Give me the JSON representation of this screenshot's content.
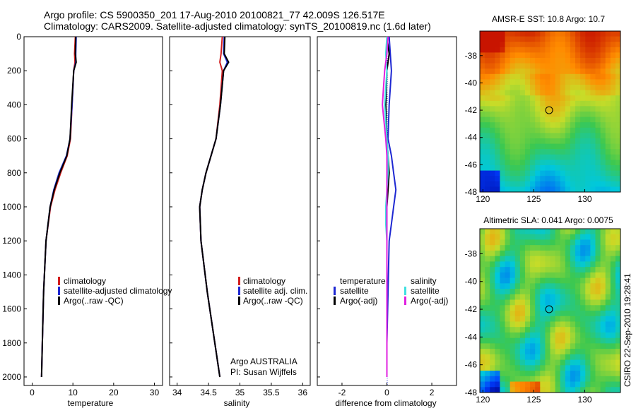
{
  "header": {
    "line1": "Argo profile: CS 5900350_201 17-Aug-2010 20100821_77 42.009S 126.517E",
    "line2": "Climatology: CARS2009. Satellite-adjusted climatology: synTS_20100819.nc (1.6d later)"
  },
  "colors": {
    "climatology": "#d21e1e",
    "satellite": "#1e28d2",
    "argo": "#000000",
    "cyan": "#40e0e0",
    "magenta": "#e020e0"
  },
  "depth_ticks": [
    "0",
    "200",
    "400",
    "600",
    "800",
    "1000",
    "1200",
    "1400",
    "1600",
    "1800",
    "2000"
  ],
  "credits": {
    "org": "Argo AUSTRALIA",
    "pi": "PI: Susan Wijffels",
    "stamp": "CSIRO 22-Sep-2010 19:28:41"
  },
  "chart_data": [
    {
      "type": "line",
      "xlabel": "temperature",
      "xticks": [
        "0",
        "10",
        "20",
        "30"
      ],
      "xlim": [
        -2,
        32
      ],
      "ylim": [
        2050,
        0
      ],
      "legend": [
        "climatology",
        "satellite-adjusted climatology",
        "Argo(..raw -QC)"
      ],
      "series": [
        {
          "name": "climatology",
          "color": "climatology",
          "x": [
            10.6,
            10.4,
            10.5,
            10.2,
            9.8,
            9.4,
            8.6,
            7.0,
            5.6,
            4.5,
            3.4,
            2.8,
            2.5,
            2.3
          ],
          "y": [
            0,
            100,
            150,
            200,
            400,
            600,
            700,
            800,
            900,
            1000,
            1200,
            1500,
            1800,
            2000
          ]
        },
        {
          "name": "satellite-adjusted climatology",
          "color": "satellite",
          "x": [
            10.8,
            10.7,
            10.7,
            10.2,
            9.8,
            9.3,
            8.4,
            6.6,
            5.3,
            4.4,
            3.4,
            2.8,
            2.5,
            2.3
          ],
          "y": [
            0,
            100,
            150,
            200,
            400,
            600,
            700,
            800,
            900,
            1000,
            1200,
            1500,
            1800,
            2000
          ]
        },
        {
          "name": "Argo(..raw -QC)",
          "color": "argo",
          "x": [
            10.7,
            10.6,
            10.8,
            10.2,
            9.7,
            9.3,
            8.5,
            6.8,
            5.4,
            4.4,
            3.4,
            2.8,
            2.5,
            2.3
          ],
          "y": [
            0,
            100,
            150,
            200,
            400,
            600,
            700,
            800,
            900,
            1000,
            1200,
            1500,
            1800,
            2000
          ]
        }
      ]
    },
    {
      "type": "line",
      "xlabel": "salinity",
      "xticks": [
        "34",
        "34.5",
        "35",
        "35.5",
        "36"
      ],
      "xlim": [
        33.88,
        36.12
      ],
      "ylim": [
        2050,
        0
      ],
      "legend": [
        "climatology",
        "satellite adj. clim.",
        "Argo(..raw -QC)"
      ],
      "series": [
        {
          "name": "climatology",
          "color": "climatology",
          "x": [
            34.72,
            34.7,
            34.68,
            34.72,
            34.68,
            34.62,
            34.54,
            34.46,
            34.4,
            34.36,
            34.38,
            34.48,
            34.6,
            34.68
          ],
          "y": [
            0,
            100,
            150,
            200,
            400,
            600,
            700,
            800,
            900,
            1000,
            1200,
            1500,
            1800,
            2000
          ]
        },
        {
          "name": "satellite adj. clim.",
          "color": "satellite",
          "x": [
            34.75,
            34.74,
            34.8,
            34.74,
            34.69,
            34.62,
            34.54,
            34.46,
            34.4,
            34.36,
            34.38,
            34.48,
            34.6,
            34.68
          ],
          "y": [
            0,
            100,
            150,
            200,
            400,
            600,
            700,
            800,
            900,
            1000,
            1200,
            1500,
            1800,
            2000
          ]
        },
        {
          "name": "Argo(..raw -QC)",
          "color": "argo",
          "x": [
            34.76,
            34.75,
            34.82,
            34.74,
            34.69,
            34.62,
            34.54,
            34.46,
            34.4,
            34.36,
            34.38,
            34.48,
            34.6,
            34.68
          ],
          "y": [
            0,
            100,
            150,
            200,
            400,
            600,
            700,
            800,
            900,
            1000,
            1200,
            1500,
            1800,
            2000
          ]
        }
      ]
    },
    {
      "type": "line",
      "xlabel": "difference from climatology",
      "xticks": [
        "-2",
        "0",
        "2"
      ],
      "xlim": [
        -3.1,
        3.1
      ],
      "ylim": [
        2050,
        0
      ],
      "legend_left": [
        "temperature",
        "satellite",
        "Argo(-adj)"
      ],
      "legend_right": [
        "salinity",
        "satellite",
        "Argo(-adj)"
      ],
      "series": [
        {
          "name": "temperature satellite",
          "color": "satellite",
          "x": [
            0.1,
            0.15,
            0.2,
            0.1,
            0.05,
            0.2,
            0.3,
            0.4,
            0.3,
            0.2,
            0.1,
            0.05,
            0.0,
            0.0
          ],
          "y": [
            0,
            100,
            200,
            400,
            600,
            700,
            800,
            900,
            1000,
            1100,
            1200,
            1500,
            1800,
            2000
          ]
        },
        {
          "name": "temperature Argo(-adj)",
          "color": "argo",
          "x": [
            0.0,
            0.1,
            0.0,
            -0.05,
            0.0,
            0.05,
            0.1,
            0.05,
            0.0,
            0.0,
            0.0,
            0.0,
            0.0,
            0.0
          ],
          "y": [
            0,
            100,
            200,
            400,
            600,
            700,
            800,
            900,
            1000,
            1100,
            1200,
            1500,
            1800,
            2000
          ]
        },
        {
          "name": "salinity satellite",
          "color": "cyan",
          "x": [
            0.0,
            -0.05,
            0.0,
            -0.1,
            0.0,
            0.05,
            0.05,
            0.0,
            -0.05,
            -0.05,
            0.0,
            0.0,
            0.0,
            0.0
          ],
          "y": [
            0,
            100,
            200,
            400,
            600,
            700,
            800,
            900,
            1000,
            1100,
            1200,
            1500,
            1800,
            2000
          ]
        },
        {
          "name": "salinity Argo(-adj)",
          "color": "magenta",
          "x": [
            0.05,
            0.0,
            -0.1,
            -0.2,
            -0.05,
            0.0,
            0.0,
            0.0,
            0.0,
            0.0,
            0.0,
            0.0,
            0.0,
            0.0
          ],
          "y": [
            0,
            100,
            200,
            400,
            600,
            700,
            800,
            900,
            1000,
            1100,
            1200,
            1500,
            1800,
            2000
          ]
        }
      ]
    },
    {
      "type": "heatmap",
      "title": "AMSR-E SST: 10.8 Argo: 10.7",
      "xticks": [
        "120",
        "125",
        "130"
      ],
      "yticks": [
        "-38",
        "-40",
        "-42",
        "-44",
        "-46",
        "-48"
      ],
      "xlim": [
        119.7,
        133.5
      ],
      "ylim": [
        -48,
        -36.2
      ],
      "marker": {
        "lon": 126.5,
        "lat": -42.0
      }
    },
    {
      "type": "heatmap",
      "title": "Altimetric SLA: 0.041 Argo: 0.0075",
      "xticks": [
        "120",
        "125",
        "130"
      ],
      "yticks": [
        "-38",
        "-40",
        "-42",
        "-44",
        "-46",
        "-48"
      ],
      "xlim": [
        119.7,
        133.5
      ],
      "ylim": [
        -48,
        -36.2
      ],
      "marker": {
        "lon": 126.5,
        "lat": -42.0
      }
    }
  ]
}
